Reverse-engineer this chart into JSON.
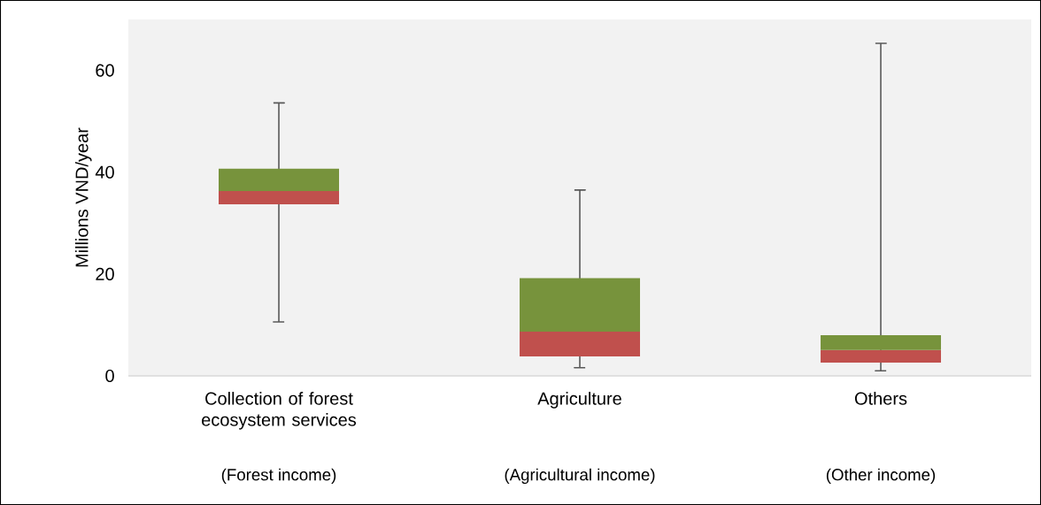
{
  "chart_data": {
    "type": "box",
    "ylabel": "Millions VND/year",
    "categories": [
      "Collection of forest ecosystem services",
      "Agriculture",
      "Others"
    ],
    "boxes": [
      {
        "low": 10.6,
        "q1": 33.7,
        "median": 36.3,
        "q3": 40.7,
        "high": 53.6
      },
      {
        "low": 1.6,
        "q1": 3.8,
        "median": 8.7,
        "q3": 19.2,
        "high": 36.5
      },
      {
        "low": 1.0,
        "q1": 2.6,
        "median": 5.1,
        "q3": 8.0,
        "high": 65.3
      }
    ],
    "colors": [
      [
        "#c0504d",
        "#77933c"
      ],
      [
        "#c0504d",
        "#77933c"
      ],
      [
        "#c0504d",
        "#77933c"
      ]
    ],
    "ylim": [
      0,
      70
    ],
    "yticks": [
      0,
      20,
      40,
      60
    ],
    "annotations": [
      "(Forest income)",
      "(Agricultural income)",
      "(Other income)"
    ]
  }
}
